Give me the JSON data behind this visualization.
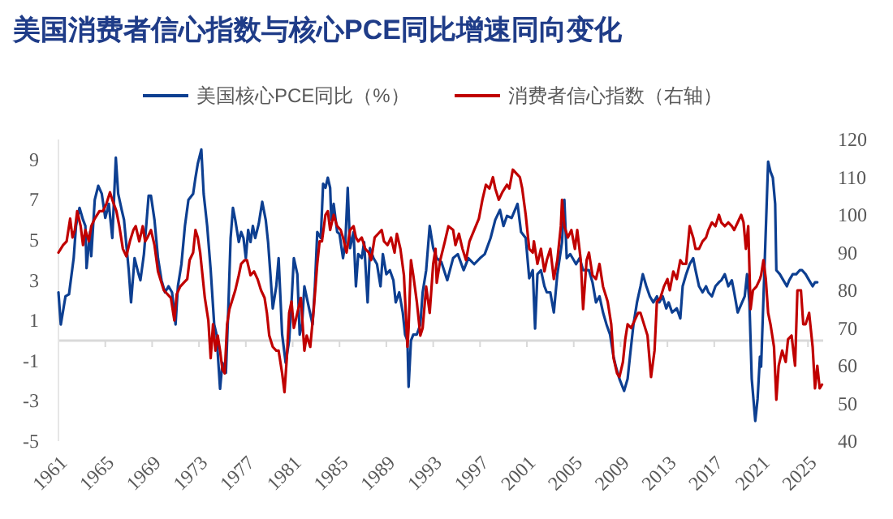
{
  "chart_data": {
    "type": "line",
    "title": "美国消费者信心指数与核心PCE同比增速同向变化",
    "xlim": [
      1961,
      2026.3
    ],
    "xticks": [
      1961,
      1965,
      1969,
      1973,
      1977,
      1981,
      1985,
      1989,
      1993,
      1997,
      2001,
      2005,
      2009,
      2013,
      2017,
      2021,
      2025
    ],
    "ylim": [
      -5,
      10
    ],
    "yticks": [
      -5,
      -3,
      -1,
      1,
      3,
      5,
      7,
      9
    ],
    "y2lim": [
      40,
      120
    ],
    "y2ticks": [
      40,
      50,
      60,
      70,
      80,
      90,
      100,
      110,
      120
    ],
    "legend": "top",
    "ref_lines": [
      {
        "axis": "y",
        "value": 0,
        "color": "#d9d9d9"
      }
    ],
    "series": [
      {
        "name": "美国核心PCE同比（%）",
        "color": "#0d3f91",
        "x": [
          1961.0,
          1961.2,
          1961.6,
          1961.9,
          1962.3,
          1962.5,
          1962.8,
          1963.1,
          1963.3,
          1963.4,
          1963.7,
          1963.8,
          1964.1,
          1964.4,
          1964.7,
          1965.0,
          1965.3,
          1965.6,
          1965.9,
          1966.1,
          1966.4,
          1966.6,
          1967.0,
          1967.2,
          1967.5,
          1967.8,
          1968.0,
          1968.3,
          1968.7,
          1968.9,
          1969.2,
          1969.5,
          1969.8,
          1970.1,
          1970.4,
          1970.7,
          1971.0,
          1971.2,
          1971.5,
          1971.8,
          1972.1,
          1972.5,
          1972.7,
          1972.9,
          1973.2,
          1973.4,
          1973.7,
          1974.0,
          1974.3,
          1974.5,
          1974.8,
          1975.0,
          1975.3,
          1975.5,
          1975.7,
          1975.9,
          1976.1,
          1976.4,
          1976.6,
          1976.8,
          1977.0,
          1977.2,
          1977.4,
          1977.6,
          1977.8,
          1978.1,
          1978.4,
          1978.7,
          1978.9,
          1979.1,
          1979.3,
          1979.6,
          1979.8,
          1980.1,
          1980.4,
          1980.7,
          1980.9,
          1981.1,
          1981.4,
          1981.6,
          1981.8,
          1982.0,
          1982.4,
          1982.7,
          1982.9,
          1983.1,
          1983.4,
          1983.6,
          1983.8,
          1984.0,
          1984.2,
          1984.3,
          1984.5,
          1984.8,
          1985.0,
          1985.3,
          1985.5,
          1985.7,
          1985.9,
          1986.2,
          1986.4,
          1986.6,
          1986.9,
          1987.1,
          1987.4,
          1987.6,
          1987.9,
          1988.2,
          1988.5,
          1988.7,
          1989.0,
          1989.3,
          1989.6,
          1989.8,
          1990.1,
          1990.4,
          1990.6,
          1990.8,
          1990.9,
          1991.1,
          1991.3,
          1991.6,
          1991.9,
          1992.1,
          1992.4,
          1992.7,
          1993.0,
          1993.3,
          1993.7,
          1994.2,
          1994.7,
          1995.1,
          1995.6,
          1996.0,
          1996.5,
          1997.0,
          1997.4,
          1997.9,
          1998.3,
          1998.7,
          1999.0,
          1999.3,
          1999.7,
          2000.2,
          2000.5,
          2000.9,
          2001.2,
          2001.5,
          2001.7,
          2001.9,
          2002.2,
          2002.5,
          2002.7,
          2003.0,
          2003.3,
          2003.6,
          2003.8,
          2004.0,
          2004.2,
          2004.4,
          2004.7,
          2004.9,
          2005.2,
          2005.5,
          2005.8,
          2006.1,
          2006.3,
          2006.6,
          2006.9,
          2007.2,
          2007.5,
          2007.8,
          2008.1,
          2008.4,
          2008.6,
          2008.9,
          2009.3,
          2009.6,
          2009.8,
          2010.1,
          2010.4,
          2010.7,
          2010.9,
          2011.2,
          2011.5,
          2011.8,
          2012.1,
          2012.3,
          2012.6,
          2012.9,
          2013.1,
          2013.4,
          2013.8,
          2014.1,
          2014.3,
          2014.6,
          2014.9,
          2015.2,
          2015.4,
          2015.7,
          2016.0,
          2016.3,
          2016.5,
          2016.8,
          2017.1,
          2017.4,
          2017.6,
          2017.9,
          2018.2,
          2018.5,
          2018.7,
          2019.0,
          2019.3,
          2019.6,
          2019.8,
          2020.0,
          2020.2,
          2020.5,
          2020.7,
          2020.9,
          2021.0,
          2021.6,
          2021.8,
          2022.0,
          2022.2,
          2022.3,
          2022.6,
          2022.9,
          2023.2,
          2023.4,
          2023.7,
          2024.0,
          2024.3,
          2024.5,
          2024.8,
          2025.1,
          2025.4,
          2025.6,
          2025.8
        ],
        "values": [
          2.4,
          0.8,
          2.2,
          2.3,
          4.1,
          5.7,
          6.6,
          6.0,
          5.7,
          3.6,
          5.4,
          4.2,
          7.0,
          7.7,
          7.3,
          6.1,
          6.8,
          5.1,
          9.1,
          7.3,
          6.5,
          6.0,
          3.5,
          1.9,
          4.1,
          3.4,
          3.0,
          4.3,
          7.2,
          7.2,
          6.0,
          4.1,
          3.0,
          2.4,
          2.7,
          2.4,
          0.8,
          2.7,
          3.8,
          5.7,
          7.0,
          7.3,
          8.1,
          8.8,
          9.5,
          7.3,
          5.7,
          3.5,
          0.8,
          0.3,
          -2.4,
          -1.1,
          -1.6,
          1.5,
          5.1,
          6.6,
          6.0,
          4.9,
          5.4,
          5.1,
          4.1,
          5.5,
          4.9,
          5.7,
          5.1,
          5.8,
          6.9,
          6.0,
          4.9,
          3.3,
          1.6,
          2.7,
          4.1,
          0.3,
          -1.1,
          0.0,
          1.9,
          4.1,
          3.3,
          0.3,
          0.8,
          2.7,
          1.6,
          0.8,
          2.7,
          5.4,
          5.1,
          7.8,
          7.6,
          8.1,
          7.6,
          6.0,
          6.8,
          5.4,
          5.3,
          4.1,
          4.9,
          7.6,
          4.6,
          5.4,
          2.7,
          4.3,
          4.1,
          4.9,
          1.9,
          4.6,
          4.1,
          3.8,
          2.7,
          4.3,
          3.3,
          3.5,
          3.0,
          1.9,
          2.4,
          1.4,
          0.3,
          0.0,
          -2.3,
          0.0,
          0.3,
          0.3,
          0.8,
          2.4,
          3.5,
          5.7,
          4.6,
          4.1,
          3.9,
          3.0,
          4.1,
          4.3,
          3.5,
          4.1,
          3.8,
          4.1,
          4.3,
          5.1,
          6.0,
          6.5,
          5.7,
          6.2,
          6.1,
          6.8,
          5.4,
          5.1,
          3.1,
          3.5,
          0.6,
          3.3,
          3.5,
          2.7,
          2.4,
          2.4,
          1.4,
          3.3,
          4.1,
          4.9,
          7.0,
          4.1,
          4.3,
          4.1,
          3.8,
          4.1,
          3.5,
          3.5,
          3.5,
          2.9,
          1.9,
          2.2,
          1.4,
          0.8,
          0.3,
          -0.8,
          -1.3,
          -1.9,
          -2.5,
          -1.9,
          -0.8,
          0.8,
          1.9,
          2.7,
          3.3,
          2.7,
          2.2,
          1.9,
          2.2,
          1.9,
          2.2,
          1.6,
          1.9,
          1.4,
          1.6,
          1.1,
          2.7,
          3.3,
          3.8,
          4.1,
          3.5,
          2.7,
          2.4,
          2.7,
          2.4,
          2.2,
          2.7,
          2.9,
          3.0,
          3.3,
          2.7,
          3.0,
          2.4,
          1.4,
          1.8,
          2.2,
          3.3,
          1.9,
          -1.9,
          -4.0,
          -2.9,
          -0.8,
          -1.3,
          8.9,
          8.4,
          8.1,
          6.8,
          3.5,
          3.3,
          3.0,
          2.7,
          3.0,
          3.3,
          3.3,
          3.5,
          3.5,
          3.3,
          3.0,
          2.7,
          2.9,
          2.9
        ]
      },
      {
        "name": "消费者信心指数（右轴）",
        "color": "#c00000",
        "axis": "y2",
        "x": [
          1961.0,
          1961.4,
          1961.7,
          1962.0,
          1962.2,
          1962.4,
          1962.6,
          1962.9,
          1963.1,
          1963.3,
          1963.6,
          1963.8,
          1964.1,
          1964.5,
          1964.8,
          1965.1,
          1965.4,
          1965.6,
          1965.95,
          1966.2,
          1966.5,
          1966.8,
          1967.1,
          1967.4,
          1967.6,
          1967.9,
          1968.2,
          1968.4,
          1968.6,
          1968.9,
          1969.2,
          1969.5,
          1969.8,
          1970.0,
          1970.3,
          1970.6,
          1970.9,
          1971.1,
          1971.4,
          1971.7,
          1972.0,
          1972.2,
          1972.5,
          1972.7,
          1972.9,
          1973.1,
          1973.3,
          1973.5,
          1973.8,
          1974.0,
          1974.2,
          1974.4,
          1974.6,
          1974.8,
          1975.0,
          1975.2,
          1975.4,
          1975.6,
          1975.8,
          1976.1,
          1976.4,
          1976.6,
          1976.9,
          1977.1,
          1977.4,
          1977.7,
          1978.0,
          1978.3,
          1978.6,
          1978.8,
          1979.0,
          1979.3,
          1979.6,
          1979.8,
          1980.1,
          1980.3,
          1980.5,
          1980.7,
          1980.9,
          1981.1,
          1981.4,
          1981.7,
          1982.0,
          1982.2,
          1982.5,
          1982.8,
          1983.1,
          1983.3,
          1983.5,
          1983.8,
          1984.0,
          1984.2,
          1984.5,
          1984.8,
          1985.1,
          1985.3,
          1985.6,
          1985.9,
          1986.2,
          1986.4,
          1986.6,
          1986.9,
          1987.2,
          1987.5,
          1987.7,
          1988.0,
          1988.3,
          1988.6,
          1988.8,
          1989.1,
          1989.4,
          1989.7,
          1989.9,
          1990.2,
          1990.5,
          1990.8,
          1990.9,
          1991.1,
          1991.3,
          1991.6,
          1991.9,
          1992.1,
          1992.4,
          1992.7,
          1993.0,
          1993.2,
          1993.3,
          1993.6,
          1994.0,
          1994.3,
          1994.7,
          1994.9,
          1995.2,
          1995.5,
          1995.8,
          1996.1,
          1996.5,
          1996.9,
          1997.2,
          1997.5,
          1997.8,
          1998.1,
          1998.3,
          1998.6,
          1998.9,
          1999.3,
          1999.5,
          1999.8,
          2000.1,
          2000.4,
          2000.6,
          2000.9,
          2001.2,
          2001.5,
          2001.6,
          2001.9,
          2002.2,
          2002.5,
          2002.7,
          2003.0,
          2003.3,
          2003.6,
          2003.9,
          2004.0,
          2004.2,
          2004.5,
          2004.8,
          2005.1,
          2005.3,
          2005.6,
          2005.8,
          2006.1,
          2006.3,
          2006.6,
          2006.9,
          2007.2,
          2007.5,
          2007.9,
          2008.2,
          2008.4,
          2008.7,
          2008.9,
          2009.2,
          2009.4,
          2009.6,
          2009.9,
          2010.2,
          2010.5,
          2010.7,
          2011.0,
          2011.3,
          2011.6,
          2011.9,
          2012.1,
          2012.4,
          2012.7,
          2013.0,
          2013.2,
          2013.5,
          2013.8,
          2014.1,
          2014.3,
          2014.6,
          2014.9,
          2015.2,
          2015.4,
          2015.7,
          2016.0,
          2016.3,
          2016.5,
          2016.8,
          2017.1,
          2017.4,
          2017.6,
          2017.9,
          2018.2,
          2018.5,
          2018.7,
          2019.0,
          2019.3,
          2019.5,
          2019.7,
          2019.9,
          2020.1,
          2020.3,
          2020.6,
          2020.9,
          2021.0,
          2021.2,
          2021.4,
          2021.6,
          2021.8,
          2022.1,
          2022.3,
          2022.5,
          2022.8,
          2023.1,
          2023.3,
          2023.6,
          2023.9,
          2024.1,
          2024.4,
          2024.6,
          2024.8,
          2025.1,
          2025.4,
          2025.6,
          2025.8,
          2026.0,
          2026.2
        ],
        "values": [
          90,
          92,
          93,
          99,
          94,
          96,
          101,
          97,
          92,
          96,
          93,
          97,
          99,
          101,
          101,
          103,
          106,
          104,
          101,
          97,
          91,
          89,
          93,
          96,
          97,
          93,
          97,
          93,
          94,
          96,
          92,
          85,
          82,
          80,
          79,
          78,
          72,
          79,
          81,
          82,
          83,
          88,
          90,
          96,
          94,
          90,
          84,
          78,
          72,
          62,
          71,
          64,
          68,
          64,
          59,
          58,
          71,
          75,
          77,
          80,
          84,
          87,
          88,
          88,
          84,
          85,
          83,
          80,
          78,
          74,
          68,
          65,
          64,
          64,
          58,
          53,
          62,
          74,
          77,
          70,
          74,
          78,
          64,
          68,
          65,
          75,
          87,
          93,
          93,
          100,
          101,
          96,
          100,
          97,
          96,
          94,
          90,
          96,
          97,
          94,
          93,
          94,
          91,
          90,
          88,
          94,
          95,
          96,
          93,
          92,
          94,
          90,
          95,
          91,
          84,
          65,
          70,
          88,
          84,
          77,
          68,
          70,
          81,
          74,
          87,
          91,
          82,
          88,
          93,
          97,
          96,
          92,
          95,
          91,
          88,
          93,
          96,
          99,
          104,
          108,
          107,
          110,
          107,
          104,
          106,
          108,
          107,
          112,
          111,
          110,
          107,
          100,
          91,
          90,
          93,
          87,
          91,
          85,
          88,
          91,
          83,
          88,
          97,
          104,
          97,
          94,
          96,
          91,
          96,
          88,
          75,
          88,
          90,
          84,
          83,
          87,
          81,
          77,
          71,
          62,
          58,
          57,
          61,
          67,
          71,
          70,
          72,
          74,
          74,
          71,
          68,
          57,
          64,
          77,
          78,
          81,
          83,
          80,
          85,
          83,
          88,
          87,
          87,
          97,
          94,
          91,
          91,
          93,
          94,
          96,
          98,
          97,
          100,
          98,
          97,
          98,
          97,
          96,
          98,
          100,
          98,
          91,
          97,
          75,
          80,
          81,
          83,
          84,
          88,
          83,
          74,
          71,
          65,
          51,
          60,
          64,
          61,
          67,
          68,
          60,
          80,
          80,
          71,
          71,
          74,
          65,
          54,
          60,
          54,
          55
        ]
      }
    ]
  }
}
